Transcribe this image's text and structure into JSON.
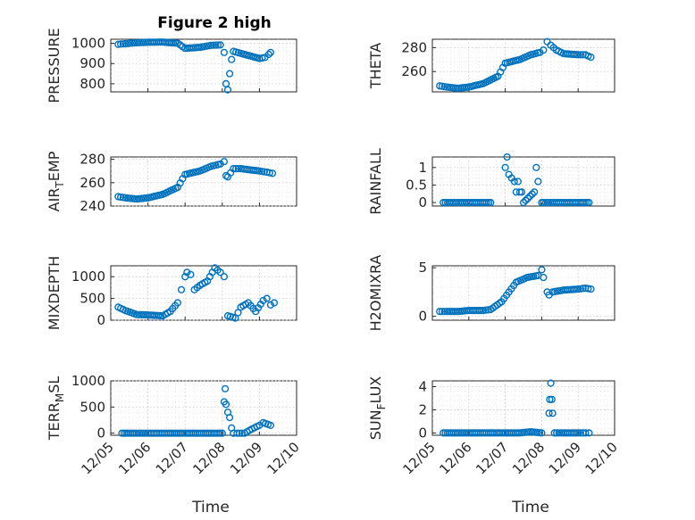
{
  "colors": {
    "marker": "#0072BD",
    "axis": "#262626"
  },
  "chart_data": [
    {
      "type": "scatter",
      "title": "Figure 2 high",
      "ylabel": "PRESSURE",
      "ylim": [
        760,
        1020
      ],
      "yticks": [
        800,
        900,
        1000
      ],
      "grid": true,
      "x": [
        "12/05",
        "12/05",
        "12/05",
        "12/06",
        "12/06",
        "12/06",
        "12/07",
        "12/07",
        "12/07",
        "12/07",
        "12/08",
        "12/08",
        "12/08",
        "12/08",
        "12/08",
        "12/08",
        "12/08",
        "12/09",
        "12/09",
        "12/09",
        "12/09"
      ],
      "xfrac": [
        0.2,
        0.4,
        0.7,
        0.0,
        0.4,
        0.8,
        0.0,
        0.4,
        0.7,
        0.95,
        0.05,
        0.1,
        0.15,
        0.2,
        0.25,
        0.3,
        0.5,
        0.0,
        0.15,
        0.25,
        0.3
      ],
      "y": [
        995,
        998,
        1003,
        1005,
        1006,
        1000,
        975,
        980,
        990,
        992,
        955,
        800,
        770,
        850,
        920,
        960,
        950,
        925,
        930,
        945,
        955
      ]
    },
    {
      "type": "scatter",
      "ylabel": "THETA",
      "ylim": [
        243,
        287
      ],
      "yticks": [
        260,
        280
      ],
      "grid": true,
      "x": [
        "12/05",
        "12/05",
        "12/05",
        "12/06",
        "12/06",
        "12/06",
        "12/07",
        "12/07",
        "12/07",
        "12/07",
        "12/08",
        "12/08",
        "12/08",
        "12/08",
        "12/08",
        "12/09",
        "12/09",
        "12/09"
      ],
      "xfrac": [
        0.2,
        0.4,
        0.7,
        0.0,
        0.4,
        0.8,
        0.0,
        0.4,
        0.7,
        0.95,
        0.05,
        0.15,
        0.25,
        0.4,
        0.6,
        0.0,
        0.2,
        0.35
      ],
      "y": [
        248,
        247,
        246,
        247,
        250,
        256,
        267,
        270,
        274,
        276,
        278,
        285,
        282,
        278,
        275,
        274,
        274,
        272
      ]
    },
    {
      "type": "scatter",
      "ylabel": "AIR_TEMP",
      "ylim": [
        240,
        282
      ],
      "yticks": [
        240,
        260,
        280
      ],
      "grid": true,
      "x": [
        "12/05",
        "12/05",
        "12/05",
        "12/06",
        "12/06",
        "12/06",
        "12/07",
        "12/07",
        "12/07",
        "12/07",
        "12/08",
        "12/08",
        "12/08",
        "12/08",
        "12/08",
        "12/09",
        "12/09",
        "12/09"
      ],
      "xfrac": [
        0.2,
        0.4,
        0.7,
        0.0,
        0.4,
        0.8,
        0.0,
        0.4,
        0.7,
        0.95,
        0.05,
        0.1,
        0.15,
        0.3,
        0.5,
        0.0,
        0.2,
        0.35
      ],
      "y": [
        248,
        247,
        246,
        247,
        250,
        256,
        267,
        270,
        274,
        276,
        278,
        266,
        265,
        272,
        272,
        270,
        269,
        268
      ]
    },
    {
      "type": "scatter",
      "ylabel": "RAINFALL",
      "ylim": [
        -0.1,
        1.3
      ],
      "yticks": [
        0,
        0.5,
        1
      ],
      "ticklabels": [
        "0",
        "0.5",
        "1"
      ],
      "grid": true,
      "x": [
        "12/05",
        "12/06",
        "12/06",
        "12/07",
        "12/07",
        "12/07",
        "12/07",
        "12/07",
        "12/07",
        "12/07",
        "12/07",
        "12/07",
        "12/07",
        "12/07",
        "12/07",
        "12/08",
        "12/08",
        "12/08",
        "12/08",
        "12/09"
      ],
      "xfrac": [
        0.3,
        0.0,
        0.6,
        0.0,
        0.05,
        0.1,
        0.25,
        0.3,
        0.35,
        0.4,
        0.45,
        0.5,
        0.8,
        0.85,
        0.9,
        0.0,
        0.05,
        0.3,
        0.8,
        0.3
      ],
      "y": [
        0,
        0,
        0,
        1.0,
        1.3,
        0.8,
        0.6,
        0.3,
        0.6,
        0.3,
        0.3,
        0,
        0.3,
        1.0,
        0.6,
        0,
        0,
        0,
        0,
        0
      ]
    },
    {
      "type": "scatter",
      "ylabel": "MIXDEPTH",
      "ylim": [
        0,
        1250
      ],
      "yticks": [
        0,
        500,
        1000
      ],
      "grid": true,
      "x": [
        "12/05",
        "12/05",
        "12/05",
        "12/06",
        "12/06",
        "12/06",
        "12/06",
        "12/06",
        "12/07",
        "12/07",
        "12/07",
        "12/07",
        "12/07",
        "12/07",
        "12/07",
        "12/07",
        "12/08",
        "12/08",
        "12/08",
        "12/08",
        "12/08",
        "12/08",
        "12/09",
        "12/09",
        "12/09",
        "12/09"
      ],
      "xfrac": [
        0.2,
        0.4,
        0.7,
        0.0,
        0.4,
        0.6,
        0.8,
        0.9,
        0.0,
        0.05,
        0.15,
        0.25,
        0.4,
        0.6,
        0.8,
        0.95,
        0.05,
        0.15,
        0.35,
        0.5,
        0.7,
        0.9,
        0.1,
        0.2,
        0.3,
        0.4
      ],
      "y": [
        300,
        220,
        130,
        120,
        100,
        200,
        400,
        700,
        1000,
        1100,
        1050,
        700,
        800,
        900,
        1200,
        1100,
        1000,
        100,
        50,
        300,
        400,
        200,
        450,
        500,
        350,
        400
      ]
    },
    {
      "type": "scatter",
      "ylabel": "H2OMIXRA",
      "ylim": [
        -0.4,
        5.2
      ],
      "yticks": [
        0,
        5
      ],
      "grid": true,
      "x": [
        "12/05",
        "12/05",
        "12/05",
        "12/06",
        "12/06",
        "12/06",
        "12/06",
        "12/07",
        "12/07",
        "12/07",
        "12/07",
        "12/08",
        "12/08",
        "12/08",
        "12/08",
        "12/08",
        "12/08",
        "12/09",
        "12/09",
        "12/09"
      ],
      "xfrac": [
        0.2,
        0.4,
        0.7,
        0.0,
        0.4,
        0.6,
        0.9,
        0.1,
        0.3,
        0.6,
        0.9,
        0.0,
        0.05,
        0.15,
        0.2,
        0.3,
        0.6,
        0.0,
        0.2,
        0.35
      ],
      "y": [
        0.5,
        0.5,
        0.5,
        0.6,
        0.6,
        0.7,
        1.5,
        2.5,
        3.5,
        4.0,
        4.2,
        4.8,
        4.0,
        2.5,
        2.2,
        2.5,
        2.7,
        2.8,
        2.9,
        2.8
      ]
    },
    {
      "type": "scatter",
      "ylabel": "TERR_MSL",
      "xlabel": "Time",
      "ylim": [
        -40,
        1000
      ],
      "yticks": [
        0,
        500,
        1000
      ],
      "grid": true,
      "x": [
        "12/05",
        "12/05",
        "12/06",
        "12/06",
        "12/07",
        "12/07",
        "12/08",
        "12/08",
        "12/08",
        "12/08",
        "12/08",
        "12/08",
        "12/08",
        "12/08",
        "12/08",
        "12/08",
        "12/08",
        "12/09",
        "12/09",
        "12/09"
      ],
      "xfrac": [
        0.3,
        0.7,
        0.0,
        0.6,
        0.0,
        0.5,
        0.0,
        0.05,
        0.08,
        0.1,
        0.15,
        0.2,
        0.25,
        0.3,
        0.4,
        0.6,
        0.8,
        0.0,
        0.1,
        0.3
      ],
      "y": [
        0,
        0,
        0,
        0,
        0,
        0,
        0,
        600,
        850,
        550,
        400,
        300,
        100,
        0,
        0,
        0,
        80,
        150,
        200,
        150
      ]
    },
    {
      "type": "scatter",
      "ylabel": "SUN_FLUX",
      "xlabel": "Time",
      "ylim": [
        -0.2,
        4.5
      ],
      "yticks": [
        0,
        2,
        4
      ],
      "grid": true,
      "x": [
        "12/05",
        "12/05",
        "12/06",
        "12/06",
        "12/07",
        "12/07",
        "12/07",
        "12/08",
        "12/08",
        "12/08",
        "12/08",
        "12/08",
        "12/08",
        "12/08",
        "12/08",
        "12/09",
        "12/09",
        "12/09"
      ],
      "xfrac": [
        0.3,
        0.7,
        0.0,
        0.6,
        0.0,
        0.4,
        0.7,
        0.0,
        0.2,
        0.22,
        0.25,
        0.28,
        0.3,
        0.35,
        0.6,
        0.0,
        0.2,
        0.3
      ],
      "y": [
        0,
        0,
        0,
        0,
        0,
        0,
        0.1,
        0,
        1.7,
        2.9,
        4.3,
        2.9,
        1.7,
        0,
        0,
        0,
        0,
        0
      ]
    }
  ],
  "xticks": [
    "12/05",
    "12/06",
    "12/07",
    "12/08",
    "12/09",
    "12/10"
  ]
}
